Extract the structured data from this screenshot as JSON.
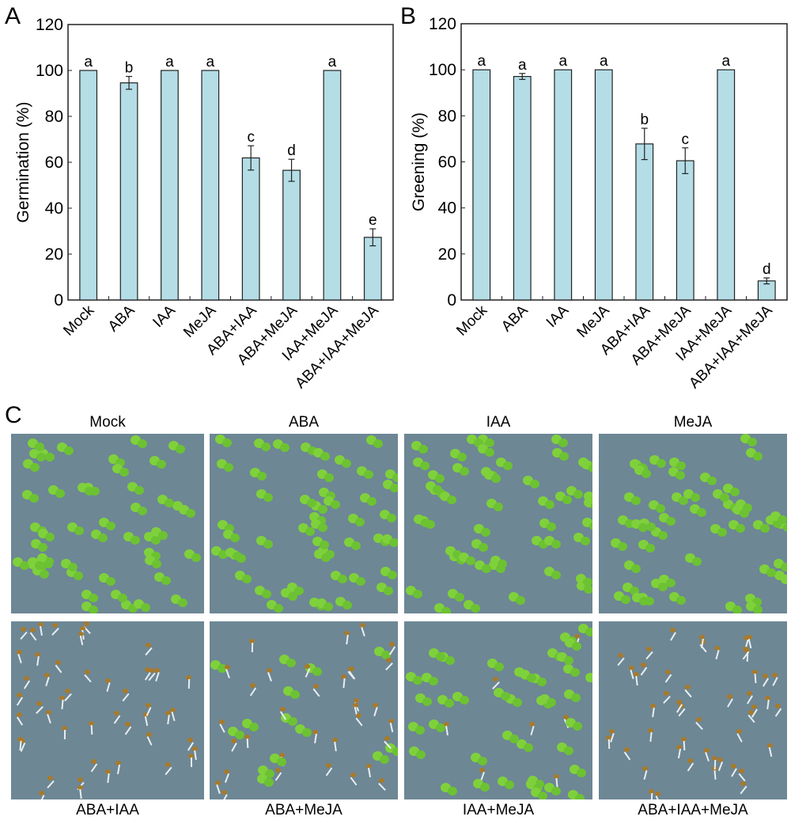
{
  "chart_data": [
    {
      "panel": "A",
      "type": "bar",
      "ylabel": "Germination (%)",
      "ylim": [
        0,
        120
      ],
      "yticks": [
        0,
        20,
        40,
        60,
        80,
        100,
        120
      ],
      "categories": [
        "Mock",
        "ABA",
        "IAA",
        "MeJA",
        "ABA+IAA",
        "ABA+MeJA",
        "IAA+MeJA",
        "ABA+IAA+MeJA"
      ],
      "values": [
        100,
        94.6,
        100,
        100,
        61.9,
        56.5,
        100,
        27.3
      ],
      "errors": [
        0,
        2.8,
        0,
        0,
        5.3,
        4.8,
        0,
        3.7
      ],
      "significance": [
        "a",
        "b",
        "a",
        "a",
        "c",
        "d",
        "a",
        "e"
      ],
      "bar_color": "#b4dde6",
      "grid": false
    },
    {
      "panel": "B",
      "type": "bar",
      "ylabel": "Greening (%)",
      "ylim": [
        0,
        120
      ],
      "yticks": [
        0,
        20,
        40,
        60,
        80,
        100,
        120
      ],
      "categories": [
        "Mock",
        "ABA",
        "IAA",
        "MeJA",
        "ABA+IAA",
        "ABA+MeJA",
        "IAA+MeJA",
        "ABA+IAA+MeJA"
      ],
      "values": [
        100,
        97.1,
        100,
        100,
        67.8,
        60.5,
        100,
        8.3
      ],
      "errors": [
        0,
        1.3,
        0,
        0,
        6.8,
        5.6,
        0,
        1.3
      ],
      "significance": [
        "a",
        "a",
        "a",
        "a",
        "b",
        "c",
        "a",
        "d"
      ],
      "bar_color": "#b4dde6",
      "grid": false
    }
  ],
  "photos": {
    "panel": "C",
    "top_labels": [
      "Mock",
      "ABA",
      "IAA",
      "MeJA"
    ],
    "bottom_labels": [
      "ABA+IAA",
      "ABA+MeJA",
      "IAA+MeJA",
      "ABA+IAA+MeJA"
    ]
  }
}
